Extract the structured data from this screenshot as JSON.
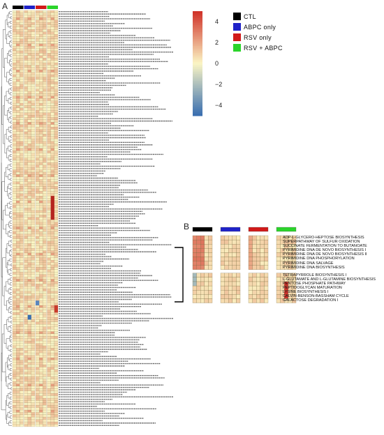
{
  "panel_labels": {
    "a": "A",
    "b": "B"
  },
  "colors": {
    "CTL": "#000000",
    "ABPC only": "#1f22c8",
    "RSV only": "#d11a1a",
    "RSV + ABPC": "#2bd42b",
    "heat_low": "#3a6fb0",
    "heat_mid": "#fbf5c4",
    "heat_high": "#d0332a"
  },
  "legend": {
    "groups": [
      {
        "label": "CTL",
        "color": "#000000"
      },
      {
        "label": "ABPC only",
        "color": "#1f22c8"
      },
      {
        "label": "RSV  only",
        "color": "#d11a1a"
      },
      {
        "label": "RSV + ABPC",
        "color": "#2bd42b"
      }
    ]
  },
  "chart_data": [
    {
      "type": "heatmap",
      "panel": "A",
      "groups": [
        "CTL",
        "ABPC only",
        "RSV only",
        "RSV + ABPC"
      ],
      "colorbar": {
        "ticks": [
          "4",
          "2",
          "0",
          "−2",
          "−4"
        ],
        "range": [
          -5,
          5
        ]
      },
      "row_count": 175,
      "highlighted_rows": [
        "TETRAPYRROLE BIOSYNTHESIS I",
        "GALACTOSE DEGRADATION I (LELOIR PATHWAY)"
      ]
    },
    {
      "type": "heatmap",
      "panel": "B",
      "groups": [
        "CTL",
        "ABPC only",
        "RSV only",
        "RSV + ABPC"
      ],
      "block1_rows": [
        "ADP-L-GLYCERO-HEPTOSE BIOSYNTHESIS",
        "SUPERPATHWAY OF SULFUR OXIDATION",
        "SUCCINATE FERMENTATION TO BUTANOATE",
        "PYRIMIDINE DNA DE NOVO BIOSYNTHESIS I",
        "PYRIMIDINE DNA DE NOVO BIOSYNTHESIS II",
        "PYRIMIDINE DNA PHOSPHORYLATION",
        "PYRIMIDINE DNA SALVAGE",
        "PYRIMIDINE DNA  BIOSYNTHESIS"
      ],
      "block2_rows": [
        "TETRAPYRROLE BIOSYNTHESIS I",
        "L-GLUTAMATE AND L-GLUTAMINE BIOSYNTHESIS",
        "PENTOSE PHOSPHATE PATHWAY",
        "PEPTIDOGLYCAN MATURATION",
        "LYSINE BIOSYNTHESIS I",
        "CALVIN-BENSON-BASSHAM CYCLE",
        "GALACTOSE DEGRADATION I"
      ]
    }
  ]
}
